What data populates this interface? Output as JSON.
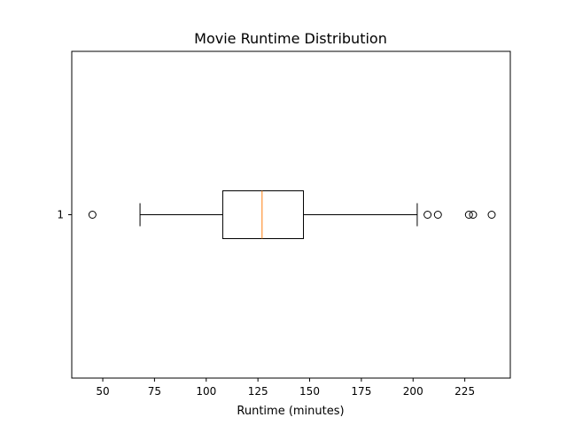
{
  "chart_data": {
    "type": "boxplot",
    "orientation": "horizontal",
    "title": "Movie Runtime Distribution",
    "xlabel": "Runtime (minutes)",
    "ylabel": "",
    "xlim": [
      35,
      247
    ],
    "xticks": [
      50,
      75,
      100,
      125,
      150,
      175,
      200,
      225
    ],
    "grid": false,
    "series": [
      {
        "category": "1",
        "whisker_low": 68,
        "q1": 108,
        "median": 127,
        "q3": 147,
        "whisker_high": 202,
        "outliers": [
          45,
          207,
          212,
          227,
          229,
          238
        ]
      }
    ],
    "colors": {
      "box": "#000000",
      "median": "#ff7f0e",
      "outlier": "#000000"
    }
  }
}
